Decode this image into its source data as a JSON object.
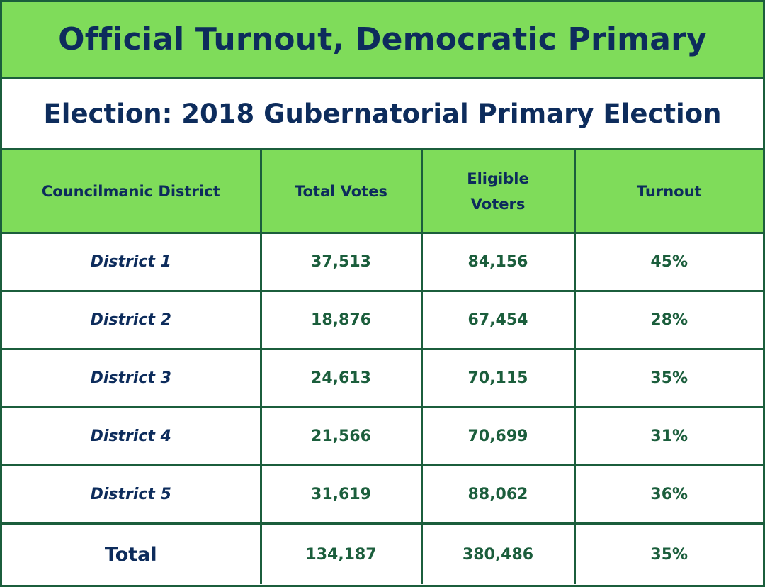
{
  "title": "Official Turnout, Democratic Primary",
  "subtitle": "Election: 2018 Gubernatorial Primary Election",
  "table": {
    "headers": {
      "district": "Councilmanic District",
      "total_votes": "Total Votes",
      "eligible_line1": "Eligible",
      "eligible_line2": "Voters",
      "turnout": "Turnout"
    },
    "rows": [
      {
        "district": "District 1",
        "total_votes": "37,513",
        "eligible_voters": "84,156",
        "turnout": "45%"
      },
      {
        "district": "District 2",
        "total_votes": "18,876",
        "eligible_voters": "67,454",
        "turnout": "28%"
      },
      {
        "district": "District 3",
        "total_votes": "24,613",
        "eligible_voters": "70,115",
        "turnout": "35%"
      },
      {
        "district": "District 4",
        "total_votes": "21,566",
        "eligible_voters": "70,699",
        "turnout": "31%"
      },
      {
        "district": "District 5",
        "total_votes": "31,619",
        "eligible_voters": "88,062",
        "turnout": "36%"
      }
    ],
    "total": {
      "label": "Total",
      "total_votes": "134,187",
      "eligible_voters": "380,486",
      "turnout": "35%"
    }
  },
  "colors": {
    "header_green": "#7fdc5a",
    "border_green": "#1b5e3c",
    "navy_text": "#0d2c5c",
    "number_green": "#1b5e3c",
    "background": "#ffffff"
  }
}
